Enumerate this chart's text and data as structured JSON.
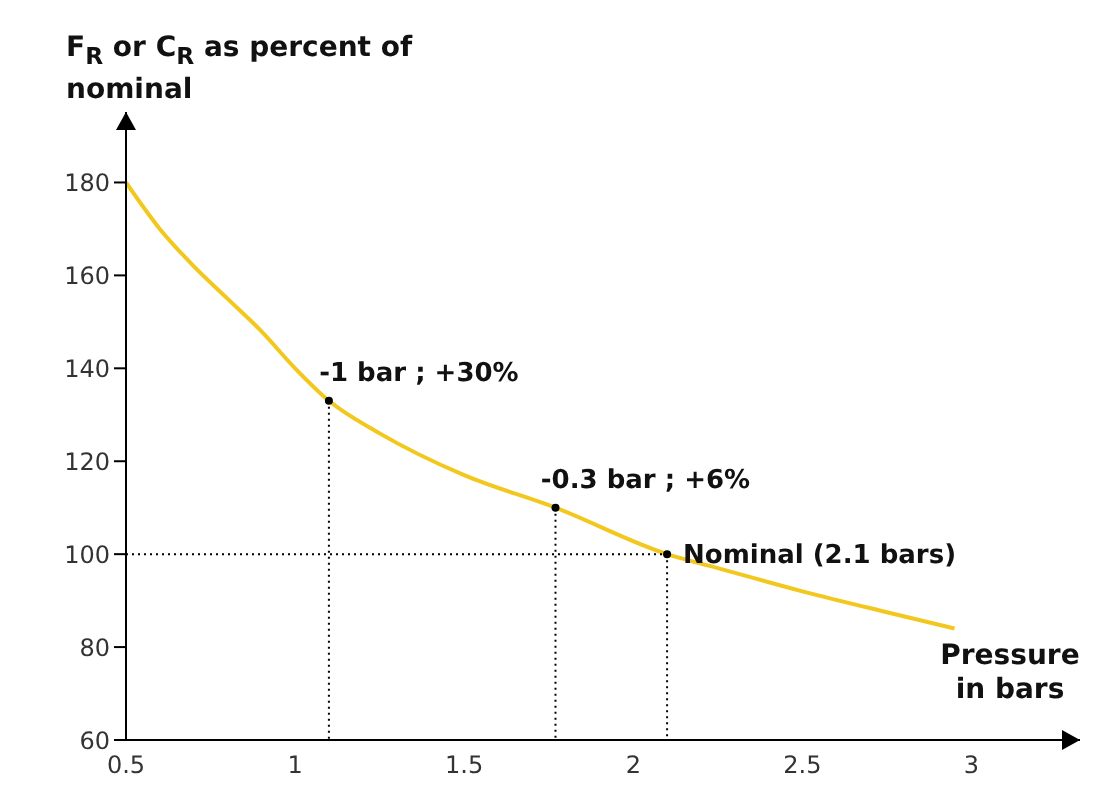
{
  "chart_data": {
    "type": "line",
    "ylabel": "F$_{R}$ or C$_{R}$ as percent of nominal",
    "xlabel": "Pressure in bars",
    "x": [
      0.5,
      0.6,
      0.7,
      0.8,
      0.9,
      1.0,
      1.1,
      1.25,
      1.5,
      1.77,
      2.1,
      2.25,
      2.5,
      2.75,
      2.95
    ],
    "series": [
      {
        "color": "#f2c81e",
        "values": [
          180,
          170,
          162,
          155,
          148,
          140,
          133,
          126,
          117,
          110,
          100,
          97,
          92,
          87.5,
          84
        ]
      }
    ],
    "xlim": [
      0.5,
      3.25
    ],
    "xticks": [
      0.5,
      1,
      1.5,
      2,
      2.5,
      3
    ],
    "ylim": [
      60,
      190
    ],
    "yticks": [
      60,
      80,
      100,
      120,
      140,
      160,
      180
    ],
    "grid": false,
    "marker": "none",
    "line_style": "solid",
    "annotations": [
      {
        "text": "-1 bar ; +30%",
        "x": 1.1,
        "y": 133
      },
      {
        "text": "-0.3 bar ; +6%",
        "x": 1.77,
        "y": 110
      },
      {
        "text": "Nominal (2.1 bars)",
        "x": 2.1,
        "y": 100
      }
    ]
  }
}
